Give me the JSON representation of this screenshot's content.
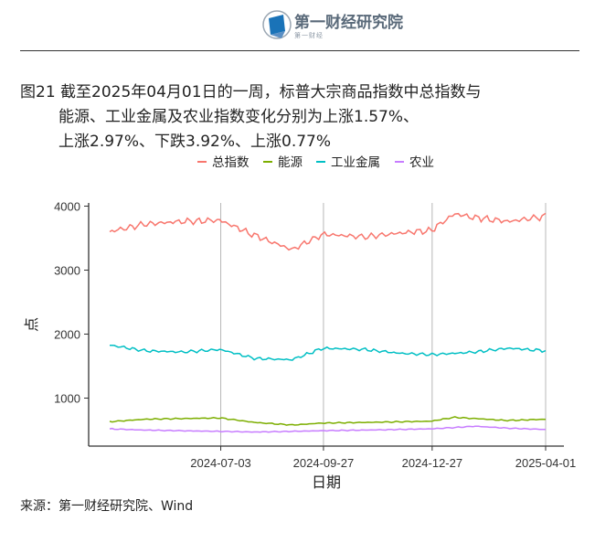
{
  "logo": {
    "name": "第一财经研究院",
    "tag": "第一财经"
  },
  "figure": {
    "title_line1": "图21  截至2025年04月01日的一周，标普大宗商品指数中总指数与",
    "title_line2": "能源、工业金属及农业指数变化分别为上涨1.57%、",
    "title_line3": "上涨2.97%、下跌3.92%、上涨0.77%"
  },
  "source": "来源：第一财经研究院、Wind",
  "chart_data": {
    "type": "line",
    "xlabel": "日期",
    "ylabel": "点",
    "ylim": [
      250,
      4050
    ],
    "x_range": [
      "2024-04-01",
      "2025-04-01"
    ],
    "yticks": [
      1000,
      2000,
      3000,
      4000
    ],
    "xticks": [
      "2024-07-03",
      "2024-09-27",
      "2024-12-27",
      "2025-04-01"
    ],
    "grid": "vertical",
    "legend_position": "top",
    "series": [
      {
        "name": "总指数",
        "color": "#F8766D",
        "x": [
          "2024-04-01",
          "2024-05-01",
          "2024-06-01",
          "2024-07-03",
          "2024-08-01",
          "2024-09-01",
          "2024-09-27",
          "2024-11-01",
          "2024-12-01",
          "2024-12-27",
          "2025-01-15",
          "2025-02-01",
          "2025-03-01",
          "2025-04-01"
        ],
        "values": [
          3600,
          3720,
          3760,
          3780,
          3540,
          3320,
          3560,
          3520,
          3580,
          3620,
          3880,
          3820,
          3760,
          3840
        ]
      },
      {
        "name": "能源",
        "color": "#7CAE00",
        "x": [
          "2024-04-01",
          "2024-05-01",
          "2024-06-01",
          "2024-07-03",
          "2024-08-01",
          "2024-09-01",
          "2024-09-27",
          "2024-11-01",
          "2024-12-01",
          "2024-12-27",
          "2025-01-15",
          "2025-02-01",
          "2025-03-01",
          "2025-04-01"
        ],
        "values": [
          630,
          670,
          680,
          690,
          620,
          580,
          610,
          620,
          630,
          640,
          700,
          680,
          650,
          670
        ]
      },
      {
        "name": "工业金属",
        "color": "#00BFC4",
        "x": [
          "2024-04-01",
          "2024-05-01",
          "2024-06-01",
          "2024-07-03",
          "2024-08-01",
          "2024-09-01",
          "2024-09-27",
          "2024-11-01",
          "2024-12-01",
          "2024-12-27",
          "2025-01-15",
          "2025-02-01",
          "2025-03-01",
          "2025-04-01"
        ],
        "values": [
          1830,
          1740,
          1720,
          1760,
          1620,
          1600,
          1780,
          1760,
          1700,
          1680,
          1700,
          1720,
          1780,
          1740
        ]
      },
      {
        "name": "农业",
        "color": "#C77CFF",
        "x": [
          "2024-04-01",
          "2024-05-01",
          "2024-06-01",
          "2024-07-03",
          "2024-08-01",
          "2024-09-01",
          "2024-09-27",
          "2024-11-01",
          "2024-12-01",
          "2024-12-27",
          "2025-01-15",
          "2025-02-01",
          "2025-03-01",
          "2025-04-01"
        ],
        "values": [
          520,
          500,
          490,
          480,
          470,
          480,
          490,
          500,
          510,
          520,
          540,
          560,
          530,
          510
        ]
      }
    ]
  }
}
